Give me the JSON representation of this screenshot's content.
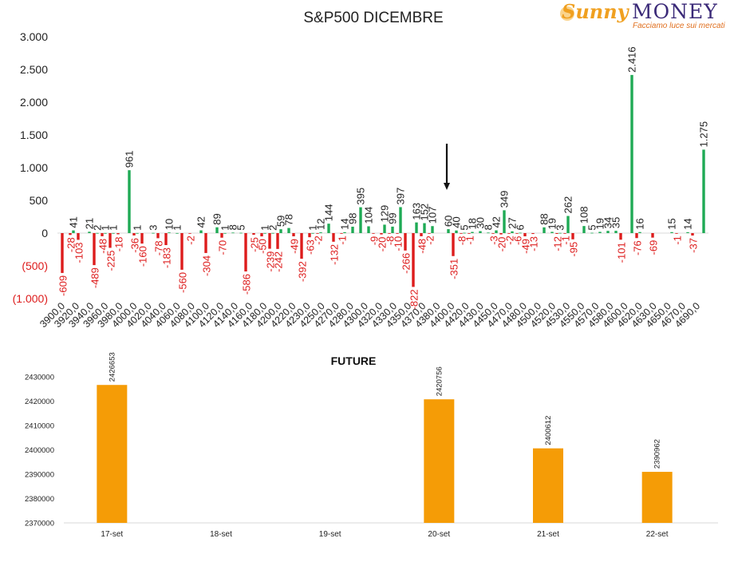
{
  "logo": {
    "name_a": "Sunny",
    "name_b": "MONEY",
    "tagline": "Facciamo luce sui mercati",
    "icon": "sun-icon"
  },
  "colors": {
    "negative": "#dd1c1c",
    "positive": "#1faa55",
    "future": "#f59c06",
    "axis_neg_text": "#dd1c1c"
  },
  "chart_data": [
    {
      "type": "bar",
      "title": "S&P500 DICEMBRE",
      "ylim": [
        -1000,
        3000
      ],
      "yticks": [
        3000,
        2500,
        2000,
        1500,
        1000,
        500,
        0,
        -500,
        -1000
      ],
      "ytick_labels": [
        "3.000",
        "2.500",
        "2.000",
        "1.500",
        "1.000",
        "500",
        "0",
        "(500)",
        "(1.000)"
      ],
      "x_tick_labels": [
        "3900,0",
        "3920,0",
        "3940,0",
        "3960,0",
        "3980,0",
        "4000,0",
        "4020,0",
        "4040,0",
        "4060,0",
        "4080,0",
        "4100,0",
        "4120,0",
        "4140,0",
        "4160,0",
        "4180,0",
        "4200,0",
        "4220,0",
        "4230,0",
        "4250,0",
        "4270,0",
        "4280,0",
        "4300,0",
        "4320,0",
        "4330,0",
        "4350,0",
        "4370,0",
        "4380,0",
        "4400,0",
        "4420,0",
        "4430,0",
        "4450,0",
        "4470,0",
        "4480,0",
        "4500,0",
        "4520,0",
        "4530,0",
        "4550,0",
        "4570,0",
        "4580,0",
        "4600,0",
        "4620,0",
        "4630,0",
        "4650,0",
        "4670,0",
        "4690,0"
      ],
      "grid": false,
      "arrow_annotation_strike": "4390,0",
      "bars": [
        {
          "strike": 3900,
          "put": -609,
          "call": 0
        },
        {
          "strike": 3910,
          "put": -28,
          "call": 41
        },
        {
          "strike": 3920,
          "put": -103,
          "call": 0
        },
        {
          "strike": 3930,
          "put": 0,
          "call": 21
        },
        {
          "strike": 3940,
          "put": -489,
          "call": 2
        },
        {
          "strike": 3950,
          "put": -48,
          "call": 1
        },
        {
          "strike": 3960,
          "put": -225,
          "call": 1
        },
        {
          "strike": 3970,
          "put": -18,
          "call": 0
        },
        {
          "strike": 3980,
          "put": 0,
          "call": 961
        },
        {
          "strike": 3990,
          "put": -36,
          "call": 1
        },
        {
          "strike": 4000,
          "put": -160,
          "call": 0
        },
        {
          "strike": 4010,
          "put": 0,
          "call": 3
        },
        {
          "strike": 4020,
          "put": -78,
          "call": 0
        },
        {
          "strike": 4030,
          "put": -183,
          "call": 10
        },
        {
          "strike": 4040,
          "put": 0,
          "call": 1
        },
        {
          "strike": 4050,
          "put": -560,
          "call": 0
        },
        {
          "strike": 4060,
          "put": -2,
          "call": 0
        },
        {
          "strike": 4070,
          "put": 0,
          "call": 42
        },
        {
          "strike": 4080,
          "put": -304,
          "call": 0
        },
        {
          "strike": 4090,
          "put": 0,
          "call": 89
        },
        {
          "strike": 4100,
          "put": -70,
          "call": 1
        },
        {
          "strike": 4110,
          "put": 0,
          "call": 8
        },
        {
          "strike": 4120,
          "put": 0,
          "call": 5
        },
        {
          "strike": 4130,
          "put": -586,
          "call": 0
        },
        {
          "strike": 4140,
          "put": -25,
          "call": 0
        },
        {
          "strike": 4150,
          "put": -50,
          "call": 1
        },
        {
          "strike": 4160,
          "put": -239,
          "call": 2
        },
        {
          "strike": 4170,
          "put": -242,
          "call": 59
        },
        {
          "strike": 4180,
          "put": 0,
          "call": 78
        },
        {
          "strike": 4190,
          "put": -49,
          "call": 0
        },
        {
          "strike": 4200,
          "put": -392,
          "call": 0
        },
        {
          "strike": 4210,
          "put": -63,
          "call": 1
        },
        {
          "strike": 4220,
          "put": -2,
          "call": 12
        },
        {
          "strike": 4230,
          "put": 0,
          "call": 144
        },
        {
          "strike": 4240,
          "put": -132,
          "call": 0
        },
        {
          "strike": 4250,
          "put": -1,
          "call": 14
        },
        {
          "strike": 4260,
          "put": 0,
          "call": 98
        },
        {
          "strike": 4270,
          "put": 0,
          "call": 395
        },
        {
          "strike": 4280,
          "put": 0,
          "call": 104
        },
        {
          "strike": 4290,
          "put": -9,
          "call": 0
        },
        {
          "strike": 4300,
          "put": -20,
          "call": 129
        },
        {
          "strike": 4310,
          "put": -8,
          "call": 99
        },
        {
          "strike": 4320,
          "put": -10,
          "call": 397
        },
        {
          "strike": 4330,
          "put": -266,
          "call": 0
        },
        {
          "strike": 4340,
          "put": -822,
          "call": 163
        },
        {
          "strike": 4350,
          "put": -48,
          "call": 152
        },
        {
          "strike": 4360,
          "put": -2,
          "call": 107
        },
        {
          "strike": 4370,
          "put": 0,
          "call": 0
        },
        {
          "strike": 4380,
          "put": 0,
          "call": 60
        },
        {
          "strike": 4390,
          "put": -351,
          "call": 40
        },
        {
          "strike": 4400,
          "put": -8,
          "call": 5
        },
        {
          "strike": 4410,
          "put": -1,
          "call": 18
        },
        {
          "strike": 4420,
          "put": 0,
          "call": 30
        },
        {
          "strike": 4430,
          "put": 0,
          "call": 8
        },
        {
          "strike": 4440,
          "put": -3,
          "call": 42
        },
        {
          "strike": 4450,
          "put": -20,
          "call": 349
        },
        {
          "strike": 4460,
          "put": -2,
          "call": 27
        },
        {
          "strike": 4470,
          "put": -6,
          "call": 6
        },
        {
          "strike": 4480,
          "put": -49,
          "call": 0
        },
        {
          "strike": 4490,
          "put": -13,
          "call": 0
        },
        {
          "strike": 4500,
          "put": 0,
          "call": 88
        },
        {
          "strike": 4510,
          "put": 0,
          "call": 19
        },
        {
          "strike": 4520,
          "put": -12,
          "call": 3
        },
        {
          "strike": 4530,
          "put": -1,
          "call": 262
        },
        {
          "strike": 4540,
          "put": -95,
          "call": 0
        },
        {
          "strike": 4550,
          "put": 0,
          "call": 108
        },
        {
          "strike": 4560,
          "put": 0,
          "call": 5
        },
        {
          "strike": 4570,
          "put": 0,
          "call": 19
        },
        {
          "strike": 4580,
          "put": 0,
          "call": 34
        },
        {
          "strike": 4590,
          "put": 0,
          "call": 35
        },
        {
          "strike": 4600,
          "put": -101,
          "call": 0
        },
        {
          "strike": 4610,
          "put": 0,
          "call": 2416
        },
        {
          "strike": 4620,
          "put": -76,
          "call": 16
        },
        {
          "strike": 4640,
          "put": -69,
          "call": 0
        },
        {
          "strike": 4660,
          "put": 0,
          "call": 15
        },
        {
          "strike": 4670,
          "put": -1,
          "call": 0
        },
        {
          "strike": 4680,
          "put": 0,
          "call": 14
        },
        {
          "strike": 4690,
          "put": -37,
          "call": 0
        },
        {
          "strike": 4700,
          "put": 0,
          "call": 1275
        }
      ]
    },
    {
      "type": "bar",
      "title": "FUTURE",
      "categories": [
        "17-set",
        "18-set",
        "19-set",
        "20-set",
        "21-set",
        "22-set"
      ],
      "values": [
        2426653,
        null,
        null,
        2420756,
        2400612,
        2390962
      ],
      "ylim": [
        2370000,
        2430000
      ],
      "yticks": [
        2430000,
        2420000,
        2410000,
        2400000,
        2390000,
        2380000,
        2370000
      ],
      "grid": false
    }
  ]
}
